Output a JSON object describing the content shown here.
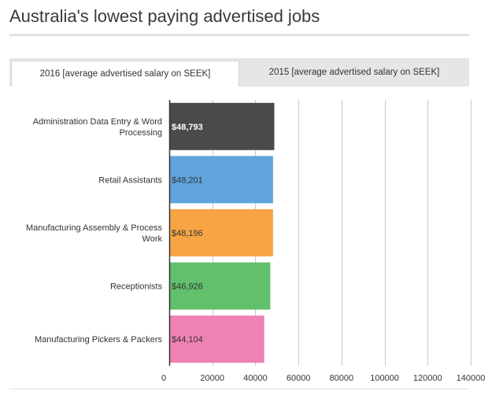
{
  "title": "Australia's lowest paying advertised jobs",
  "tabs": [
    {
      "label": "2016 [average advertised salary on SEEK]",
      "active": true
    },
    {
      "label": "2015 [average advertised salary on SEEK]",
      "active": false
    }
  ],
  "chart_data": {
    "type": "bar",
    "orientation": "horizontal",
    "title": "",
    "xlabel": "",
    "ylabel": "",
    "categories": [
      "Administration Data Entry & Word Processing",
      "Retail Assistants",
      "Manufacturing Assembly & Process Work",
      "Receptionists",
      "Manufacturing Pickers & Packers"
    ],
    "category_lines": [
      [
        "Administration Data Entry & Word",
        "Processing"
      ],
      [
        "Retail Assistants"
      ],
      [
        "Manufacturing Assembly & Process",
        "Work"
      ],
      [
        "Receptionists"
      ],
      [
        "Manufacturing Pickers & Packers"
      ]
    ],
    "values": [
      48793,
      48201,
      48196,
      46926,
      44104
    ],
    "data_labels": [
      "$48,793",
      "$48,201",
      "$48,196",
      "$46,926",
      "$44,104"
    ],
    "colors": [
      "#4a4a4a",
      "#5fa4dc",
      "#f7a445",
      "#62bf6c",
      "#ee82b4"
    ],
    "label_colors": [
      "#ffffff",
      "#333333",
      "#333333",
      "#333333",
      "#333333"
    ],
    "xlim": [
      0,
      140000
    ],
    "x_ticks": [
      0,
      20000,
      40000,
      60000,
      80000,
      100000,
      120000,
      140000
    ],
    "x_tick_labels": [
      "0",
      "20000",
      "40000",
      "60000",
      "80000",
      "100000",
      "120000",
      "140000"
    ],
    "grid": true
  }
}
